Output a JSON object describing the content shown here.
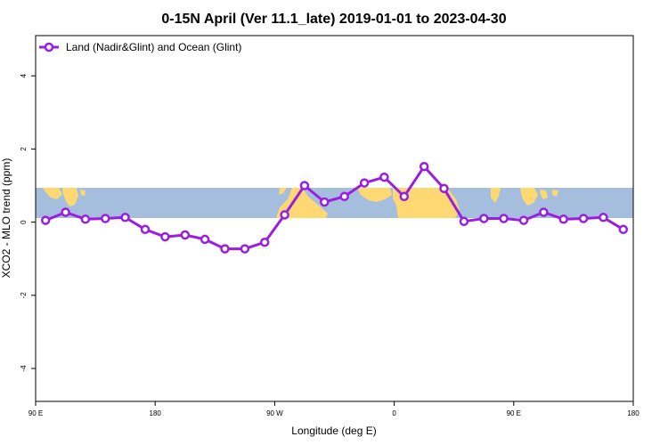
{
  "chart_data": {
    "type": "line",
    "title": "0-15N April (Ver 11.1_late)   2019-01-01 to 2023-04-30",
    "xlabel": "Longitude (deg E)",
    "ylabel": "XCO2 - MLO trend (ppm)",
    "x_ticks": [
      {
        "value": 90,
        "label": "90 E"
      },
      {
        "value": 180,
        "label": "180"
      },
      {
        "value": 270,
        "label": "90 W"
      },
      {
        "value": 360,
        "label": "0"
      },
      {
        "value": 450,
        "label": "90 E"
      },
      {
        "value": 540,
        "label": "180"
      }
    ],
    "y_ticks": [
      {
        "value": -4,
        "label": "-4"
      },
      {
        "value": -2,
        "label": "-2"
      },
      {
        "value": 0,
        "label": "0"
      },
      {
        "value": 2,
        "label": "2"
      },
      {
        "value": 4,
        "label": "4"
      }
    ],
    "xlim": [
      90,
      540
    ],
    "ylim": [
      -4.9,
      5.1
    ],
    "grid": false,
    "legend_position": "top-left",
    "band": {
      "ymin": 0.1,
      "ymax": 0.95,
      "ocean_color": "#a6bedd",
      "land_color": "#fdd873"
    },
    "series": [
      {
        "name": "Land (Nadir&Glint) and Ocean (Glint)",
        "color": "#9a1ee0",
        "x": [
          97.5,
          112.5,
          127.5,
          142.5,
          157.5,
          172.5,
          187.5,
          202.5,
          217.5,
          232.5,
          247.5,
          262.5,
          277.5,
          292.5,
          307.5,
          322.5,
          337.5,
          352.5,
          367.5,
          382.5,
          397.5,
          412.5,
          427.5,
          442.5,
          457.5,
          472.5,
          487.5,
          502.5,
          517.5,
          532.5
        ],
        "y": [
          0.05,
          0.27,
          0.08,
          0.1,
          0.13,
          -0.2,
          -0.4,
          -0.35,
          -0.47,
          -0.73,
          -0.73,
          -0.55,
          0.2,
          1.0,
          0.55,
          0.7,
          1.07,
          1.23,
          0.7,
          1.52,
          0.92,
          0.02,
          0.1,
          0.1,
          0.05,
          0.27,
          0.08,
          0.1,
          0.13,
          -0.2
        ]
      }
    ]
  }
}
